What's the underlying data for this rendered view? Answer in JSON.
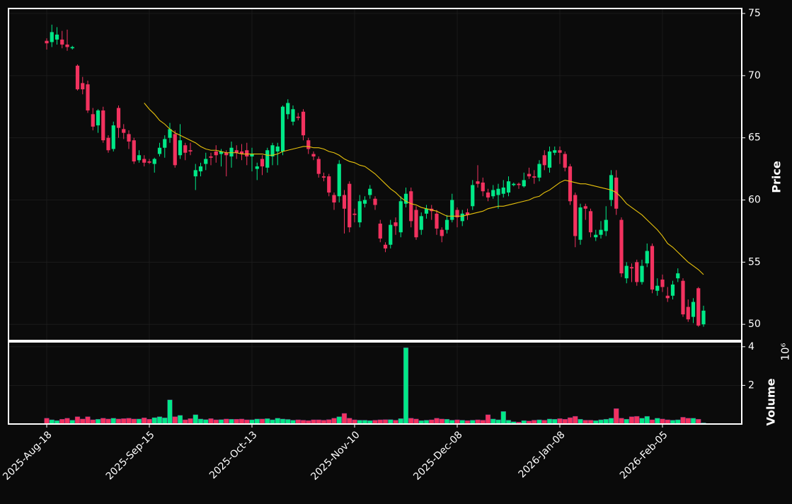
{
  "chart_data": {
    "type": "candlestick",
    "ylabel": "Price",
    "volume_label": "Volume",
    "volume_offset_label": "10⁶",
    "categories": [
      "2025-Aug-18",
      null,
      null,
      null,
      null,
      null,
      null,
      null,
      null,
      null,
      null,
      null,
      null,
      null,
      null,
      null,
      null,
      null,
      null,
      null,
      "2025-Sep-15",
      null,
      null,
      null,
      null,
      null,
      null,
      null,
      null,
      null,
      null,
      null,
      null,
      null,
      null,
      null,
      null,
      null,
      null,
      null,
      "2025-Oct-13",
      null,
      null,
      null,
      null,
      null,
      null,
      null,
      null,
      null,
      null,
      null,
      null,
      null,
      null,
      null,
      null,
      null,
      null,
      null,
      "2025-Nov-10",
      null,
      null,
      null,
      null,
      null,
      null,
      null,
      null,
      null,
      null,
      null,
      null,
      null,
      null,
      null,
      null,
      null,
      null,
      null,
      "2025-Dec-08",
      null,
      null,
      null,
      null,
      null,
      null,
      null,
      null,
      null,
      null,
      null,
      null,
      null,
      null,
      null,
      null,
      null,
      null,
      null,
      "2026-Jan-08",
      null,
      null,
      null,
      null,
      null,
      null,
      null,
      null,
      null,
      null,
      null,
      null,
      null,
      null,
      null,
      null,
      null,
      null,
      null,
      "2026-Feb-05",
      null,
      null,
      null,
      null,
      null,
      null,
      null,
      null
    ],
    "open": [
      72.8,
      72.7,
      72.9,
      72.9,
      72.5,
      72.2,
      70.8,
      69.4,
      69.3,
      66.9,
      66.0,
      67.2,
      65.0,
      64.1,
      67.4,
      65.7,
      65.3,
      64.8,
      63.2,
      63.3,
      63.1,
      62.9,
      63.7,
      64.2,
      65.0,
      65.3,
      63.6,
      64.4,
      64.0,
      61.9,
      62.3,
      62.9,
      63.5,
      63.9,
      63.7,
      63.8,
      63.5,
      64.0,
      63.9,
      64.0,
      63.5,
      62.5,
      63.3,
      62.6,
      63.5,
      63.9,
      63.9,
      66.9,
      66.3,
      66.7,
      67.1,
      64.8,
      63.7,
      63.3,
      61.9,
      61.9,
      60.4,
      60.3,
      60.4,
      61.3,
      58.9,
      58.2,
      59.7,
      60.4,
      60.1,
      58.1,
      56.4,
      56.4,
      58.2,
      57.4,
      59.7,
      60.7,
      59.2,
      57.6,
      58.9,
      59.3,
      58.9,
      57.6,
      57.6,
      58.4,
      59.2,
      58.3,
      59.0,
      59.5,
      61.5,
      61.4,
      60.6,
      60.3,
      60.4,
      60.5,
      60.6,
      61.2,
      61.3,
      61.1,
      62.1,
      61.9,
      61.8,
      63.6,
      62.6,
      63.8,
      64.0,
      63.7,
      62.7,
      60.4,
      56.8,
      59.5,
      59.1,
      57.0,
      57.2,
      57.5,
      60.0,
      61.8,
      58.4,
      53.7,
      54.6,
      55.0,
      53.4,
      54.9,
      56.3,
      52.7,
      53.6,
      52.3,
      52.3,
      53.7,
      53.5,
      51.4,
      50.6,
      52.9,
      50.0
    ],
    "high": [
      73.0,
      74.1,
      73.9,
      73.6,
      73.7,
      72.4,
      70.9,
      69.9,
      69.6,
      67.4,
      67.3,
      67.5,
      65.2,
      66.3,
      67.6,
      66.1,
      65.6,
      65.0,
      64.0,
      63.6,
      63.3,
      63.4,
      64.6,
      65.2,
      66.2,
      65.6,
      66.1,
      64.6,
      64.6,
      62.9,
      63.0,
      63.8,
      63.8,
      64.4,
      64.1,
      64.0,
      64.7,
      64.4,
      64.5,
      64.6,
      64.2,
      63.0,
      63.6,
      64.2,
      64.6,
      64.6,
      67.6,
      68.1,
      67.6,
      67.0,
      67.3,
      65.0,
      63.9,
      63.5,
      62.2,
      62.1,
      60.6,
      63.2,
      60.8,
      61.5,
      59.3,
      60.4,
      60.3,
      61.2,
      60.3,
      58.4,
      56.6,
      58.4,
      58.6,
      60.3,
      61.0,
      61.0,
      59.5,
      59.0,
      59.6,
      59.6,
      59.2,
      57.8,
      58.8,
      60.5,
      59.4,
      59.2,
      59.3,
      61.6,
      62.8,
      61.8,
      60.9,
      61.2,
      61.3,
      61.6,
      61.9,
      61.4,
      61.4,
      62.2,
      62.6,
      62.4,
      63.2,
      64.0,
      64.3,
      64.3,
      64.3,
      63.9,
      62.9,
      60.6,
      59.7,
      59.7,
      59.3,
      57.6,
      58.3,
      59.5,
      62.4,
      62.4,
      58.6,
      55.0,
      54.9,
      55.2,
      55.2,
      56.5,
      56.5,
      53.7,
      54.0,
      53.0,
      53.5,
      54.5,
      53.7,
      52.0,
      52.1,
      53.0,
      51.5
    ],
    "low": [
      72.1,
      72.3,
      72.5,
      72.2,
      72.0,
      72.1,
      68.8,
      68.5,
      67.0,
      65.6,
      65.4,
      64.6,
      63.8,
      63.9,
      65.0,
      64.9,
      64.1,
      62.9,
      63.0,
      62.7,
      62.9,
      62.2,
      63.5,
      63.4,
      64.6,
      62.6,
      63.3,
      63.2,
      63.6,
      60.8,
      61.9,
      62.4,
      62.8,
      63.0,
      62.7,
      61.9,
      62.6,
      63.3,
      63.2,
      62.8,
      62.3,
      61.6,
      62.0,
      62.2,
      62.8,
      62.8,
      63.6,
      66.5,
      66.0,
      66.4,
      64.8,
      63.7,
      63.2,
      61.8,
      61.5,
      60.3,
      59.2,
      59.8,
      57.3,
      57.4,
      58.2,
      57.8,
      59.4,
      60.1,
      59.2,
      56.6,
      55.8,
      56.1,
      57.2,
      57.0,
      59.4,
      57.8,
      56.8,
      57.2,
      58.5,
      58.4,
      57.2,
      56.6,
      57.3,
      58.2,
      57.8,
      57.9,
      58.4,
      59.2,
      61.0,
      60.3,
      59.9,
      60.1,
      59.3,
      60.2,
      60.3,
      61.1,
      60.9,
      61.0,
      61.7,
      61.3,
      61.5,
      62.4,
      62.2,
      63.6,
      62.9,
      62.3,
      59.6,
      56.2,
      56.4,
      58.4,
      57.0,
      56.7,
      56.9,
      57.1,
      59.5,
      58.8,
      53.8,
      53.3,
      53.4,
      53.1,
      53.2,
      54.6,
      52.5,
      52.3,
      52.6,
      51.8,
      52.0,
      53.4,
      50.6,
      50.2,
      50.1,
      49.8,
      49.8
    ],
    "close": [
      72.6,
      73.5,
      73.3,
      72.5,
      72.3,
      72.3,
      68.9,
      68.9,
      67.2,
      65.9,
      67.2,
      64.8,
      64.0,
      66.0,
      65.8,
      65.4,
      64.7,
      63.1,
      63.6,
      63.0,
      63.0,
      63.3,
      64.2,
      64.9,
      65.7,
      62.8,
      64.8,
      63.8,
      63.9,
      62.4,
      62.7,
      63.3,
      63.4,
      63.6,
      63.9,
      63.6,
      64.2,
      63.8,
      63.7,
      63.5,
      63.7,
      62.7,
      62.7,
      64.0,
      64.4,
      64.3,
      67.5,
      67.8,
      67.3,
      66.6,
      65.2,
      64.1,
      63.5,
      62.1,
      61.8,
      60.6,
      59.8,
      62.9,
      59.3,
      57.8,
      58.8,
      59.9,
      60.0,
      60.9,
      59.6,
      56.9,
      56.1,
      58.0,
      57.9,
      59.9,
      60.5,
      58.3,
      57.0,
      58.7,
      59.3,
      59.1,
      57.7,
      57.1,
      58.4,
      60.0,
      58.6,
      58.9,
      58.8,
      61.2,
      61.3,
      60.7,
      60.2,
      60.8,
      60.9,
      61.0,
      61.5,
      61.3,
      61.2,
      61.6,
      61.9,
      61.8,
      62.9,
      62.8,
      63.9,
      64.0,
      63.8,
      62.6,
      59.9,
      57.1,
      59.4,
      59.3,
      57.4,
      57.2,
      57.6,
      58.4,
      62.0,
      59.3,
      54.1,
      54.7,
      54.5,
      53.4,
      54.7,
      55.9,
      52.8,
      53.1,
      53.0,
      52.1,
      53.2,
      54.1,
      50.8,
      50.4,
      51.8,
      49.9,
      51.1
    ],
    "volume": [
      300000,
      220000,
      180000,
      250000,
      300000,
      200000,
      380000,
      260000,
      380000,
      220000,
      250000,
      300000,
      260000,
      300000,
      260000,
      280000,
      300000,
      260000,
      260000,
      320000,
      250000,
      330000,
      380000,
      320000,
      1250000,
      380000,
      450000,
      220000,
      280000,
      480000,
      260000,
      230000,
      280000,
      220000,
      230000,
      260000,
      250000,
      250000,
      260000,
      220000,
      220000,
      260000,
      260000,
      280000,
      220000,
      300000,
      260000,
      240000,
      200000,
      220000,
      200000,
      180000,
      220000,
      220000,
      200000,
      230000,
      300000,
      380000,
      550000,
      300000,
      220000,
      200000,
      200000,
      180000,
      200000,
      220000,
      230000,
      230000,
      200000,
      280000,
      3950000,
      300000,
      260000,
      180000,
      200000,
      220000,
      300000,
      260000,
      250000,
      200000,
      220000,
      200000,
      180000,
      200000,
      220000,
      200000,
      480000,
      260000,
      220000,
      650000,
      200000,
      120000,
      100000,
      180000,
      160000,
      200000,
      220000,
      200000,
      260000,
      250000,
      280000,
      250000,
      330000,
      400000,
      250000,
      200000,
      200000,
      180000,
      220000,
      250000,
      300000,
      800000,
      300000,
      250000,
      380000,
      400000,
      300000,
      400000,
      220000,
      300000,
      260000,
      220000,
      200000,
      220000,
      350000,
      300000,
      300000,
      250000,
      60000
    ],
    "ma_values": [
      null,
      null,
      null,
      null,
      null,
      null,
      null,
      null,
      null,
      null,
      null,
      null,
      null,
      null,
      null,
      null,
      null,
      null,
      null,
      67.8,
      67.3,
      66.9,
      66.4,
      66.1,
      65.7,
      65.4,
      65.2,
      65.0,
      64.8,
      64.6,
      64.3,
      64.1,
      64.0,
      64.0,
      63.9,
      63.8,
      63.8,
      63.8,
      63.7,
      63.7,
      63.7,
      63.7,
      63.7,
      63.6,
      63.6,
      63.7,
      63.9,
      64.0,
      64.1,
      64.2,
      64.3,
      64.3,
      64.2,
      64.2,
      64.1,
      63.9,
      63.8,
      63.6,
      63.3,
      63.1,
      63.0,
      62.8,
      62.7,
      62.4,
      62.1,
      61.7,
      61.3,
      60.9,
      60.6,
      60.2,
      59.9,
      59.7,
      59.6,
      59.4,
      59.3,
      59.2,
      59.1,
      58.9,
      58.7,
      58.7,
      58.7,
      58.7,
      58.8,
      58.9,
      59.0,
      59.1,
      59.3,
      59.4,
      59.5,
      59.5,
      59.6,
      59.7,
      59.8,
      59.9,
      60.0,
      60.2,
      60.3,
      60.6,
      60.8,
      61.1,
      61.4,
      61.6,
      61.5,
      61.4,
      61.3,
      61.3,
      61.2,
      61.1,
      61.0,
      60.9,
      60.8,
      60.6,
      60.2,
      59.7,
      59.4,
      59.1,
      58.8,
      58.4,
      58.0,
      57.6,
      57.1,
      56.5,
      56.2,
      55.8,
      55.4,
      55.0,
      54.7,
      54.4,
      54.0
    ],
    "up_color": "#00e887",
    "down_color": "#f2325f",
    "ma_color": "#e8c20c",
    "ylim": [
      48.7,
      75.4
    ],
    "yticks": [
      50,
      55,
      60,
      65,
      70,
      75
    ],
    "volume_ylim": [
      0,
      4250000
    ],
    "volume_yticks": [
      {
        "value": 2000000,
        "label": "2"
      },
      {
        "value": 4000000,
        "label": "4"
      }
    ],
    "grid": true
  }
}
